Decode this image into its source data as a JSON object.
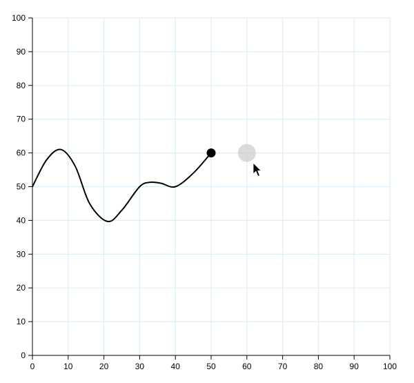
{
  "chart_data": {
    "type": "line",
    "title": "",
    "xlabel": "",
    "ylabel": "",
    "xlim": [
      0,
      100
    ],
    "ylim": [
      0,
      100
    ],
    "grid": true,
    "x_ticks": [
      "0",
      "10",
      "20",
      "30",
      "40",
      "50",
      "60",
      "70",
      "80",
      "90",
      "100"
    ],
    "y_ticks": [
      "0",
      "10",
      "20",
      "30",
      "40",
      "50",
      "60",
      "70",
      "80",
      "90",
      "100"
    ],
    "series": [
      {
        "x": [
          0,
          4,
          8,
          12,
          16,
          21,
          25,
          30,
          33,
          36,
          40,
          45,
          50
        ],
        "y": [
          50,
          58,
          61,
          56,
          45,
          39.7,
          43,
          50,
          51.3,
          51,
          50,
          54,
          60
        ],
        "color": "#000000"
      }
    ],
    "end_point": {
      "x": 50,
      "y": 60,
      "color": "#000000"
    },
    "drag_target": {
      "x": 60,
      "y": 60,
      "color": "#cccccc"
    },
    "cursor_icon": "arrow-cursor-icon",
    "grid_color": "#ddeef6"
  }
}
